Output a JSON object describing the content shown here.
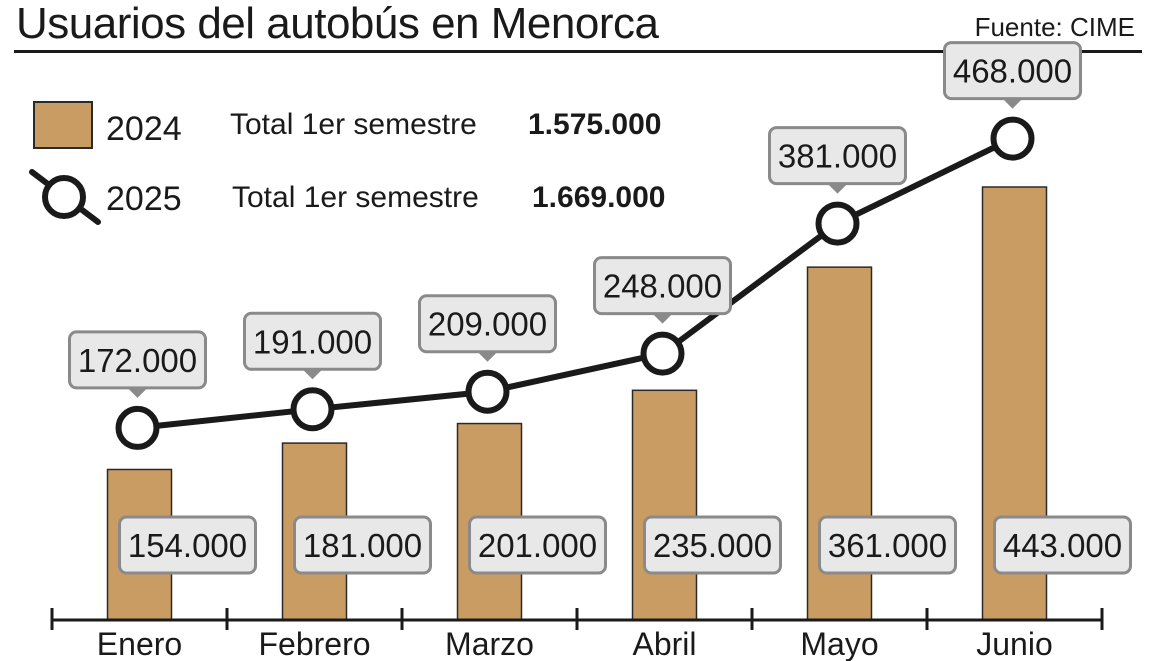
{
  "title": "Usuarios del autobús en Menorca",
  "source": "Fuente: CIME",
  "colors": {
    "bar_fill": "#c99c63",
    "bar_stroke": "#2a2a2a",
    "line": "#1a1a1a",
    "label_box_fill": "#e8e8e8",
    "label_box_stroke": "#8a8a8a"
  },
  "legend": [
    {
      "key": "2024",
      "year": "2024",
      "label": "Total 1er semestre",
      "total": "1.575.000",
      "marker": "bar-swatch"
    },
    {
      "key": "2025",
      "year": "2025",
      "label": "Total 1er semestre",
      "total": "1.669.000",
      "marker": "line-circle"
    }
  ],
  "chart_data": {
    "type": "bar",
    "categories": [
      "Enero",
      "Febrero",
      "Marzo",
      "Abril",
      "Mayo",
      "Junio"
    ],
    "series": [
      {
        "name": "2024",
        "type": "bar",
        "values": [
          154000,
          181000,
          201000,
          235000,
          361000,
          443000
        ],
        "labels": [
          "154.000",
          "181.000",
          "201.000",
          "235.000",
          "361.000",
          "443.000"
        ]
      },
      {
        "name": "2025",
        "type": "line",
        "values": [
          172000,
          191000,
          209000,
          248000,
          381000,
          468000
        ],
        "labels": [
          "172.000",
          "191.000",
          "209.000",
          "248.000",
          "381.000",
          "468.000"
        ]
      }
    ],
    "grid": false,
    "legend_position": "top-left"
  }
}
